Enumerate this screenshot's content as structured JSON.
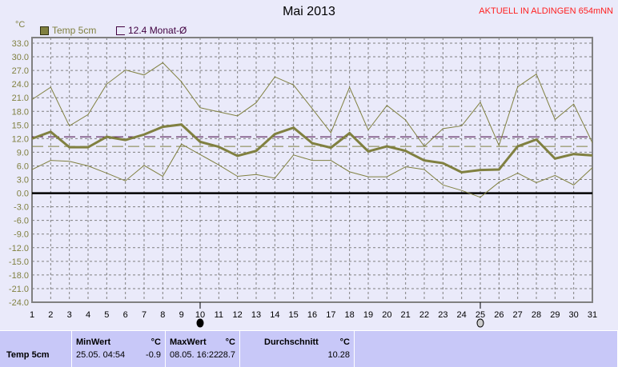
{
  "title": "Mai 2013",
  "badge": "AKTUELL IN ALDINGEN 654mNN",
  "colors": {
    "series": "#808040",
    "month_avg": "#400040",
    "zero": "#000000",
    "badge": "#ff2020",
    "background": "#eaeafa",
    "panel": "#c8c8f8"
  },
  "legend": [
    {
      "label": "Temp 5cm",
      "icon": "filled-square"
    },
    {
      "label": "12.4 Monat-Ø",
      "icon": "open-square"
    }
  ],
  "moon_phases": [
    {
      "day": 10,
      "icon": "new-moon-icon"
    },
    {
      "day": 25,
      "icon": "full-moon-icon"
    }
  ],
  "chart_data": {
    "type": "line",
    "title": "Mai 2013",
    "ylabel": "°C",
    "ylim": [
      -24,
      33
    ],
    "yticks": [
      "33.0",
      "30.0",
      "27.0",
      "24.0",
      "21.0",
      "18.0",
      "15.0",
      "12.0",
      "9.0",
      "6.0",
      "3.0",
      "0.0",
      "-3.0",
      "-6.0",
      "-9.0",
      "-12.0",
      "-15.0",
      "-18.0",
      "-21.0",
      "-24.0"
    ],
    "x": [
      1,
      2,
      3,
      4,
      5,
      6,
      7,
      8,
      9,
      10,
      11,
      12,
      13,
      14,
      15,
      16,
      17,
      18,
      19,
      20,
      21,
      22,
      23,
      24,
      25,
      26,
      27,
      28,
      29,
      30,
      31
    ],
    "grid": true,
    "legend_position": "top-left",
    "series": [
      {
        "name": "Temp 5cm",
        "role": "mean",
        "values": [
          12.0,
          13.5,
          10.1,
          10.1,
          12.4,
          11.7,
          12.9,
          14.6,
          15.1,
          11.3,
          10.2,
          8.2,
          9.3,
          13.0,
          14.4,
          11.0,
          10.0,
          13.2,
          9.2,
          10.3,
          9.3,
          7.2,
          6.6,
          4.6,
          5.1,
          5.2,
          10.3,
          11.8,
          7.6,
          8.6,
          8.3
        ]
      },
      {
        "role": "max",
        "values": [
          20.6,
          23.3,
          14.8,
          17.3,
          24.0,
          27.1,
          26.0,
          28.7,
          24.5,
          18.8,
          17.9,
          17.0,
          19.9,
          25.6,
          23.8,
          18.6,
          13.3,
          23.3,
          13.9,
          19.3,
          16.1,
          10.3,
          14.2,
          14.8,
          20.0,
          10.5,
          23.4,
          26.2,
          16.2,
          19.6,
          11.1
        ]
      },
      {
        "role": "min",
        "values": [
          5.2,
          7.2,
          7.0,
          6.0,
          4.4,
          2.7,
          6.1,
          3.7,
          10.8,
          8.5,
          6.2,
          3.7,
          4.1,
          3.3,
          8.4,
          7.2,
          7.2,
          4.7,
          3.6,
          3.6,
          5.8,
          5.2,
          1.8,
          0.6,
          -0.9,
          2.4,
          4.4,
          2.3,
          3.9,
          1.8,
          5.6
        ]
      }
    ],
    "reference_lines": [
      {
        "name": "12.4 Monat-Ø",
        "value": 12.4,
        "color": "#400040"
      },
      {
        "value": 10.28,
        "color": "#808040"
      }
    ]
  },
  "stats": {
    "row_label": "Temp 5cm",
    "min": {
      "header": "MinWert",
      "unit": "°C",
      "time": "25.05.  04:54",
      "value": "-0.9"
    },
    "max": {
      "header": "MaxWert",
      "unit": "°C",
      "time": "08.05.  16:22",
      "value": "28.7"
    },
    "avg": {
      "header": "Durchschnitt",
      "unit": "°C",
      "value": "10.28"
    }
  }
}
